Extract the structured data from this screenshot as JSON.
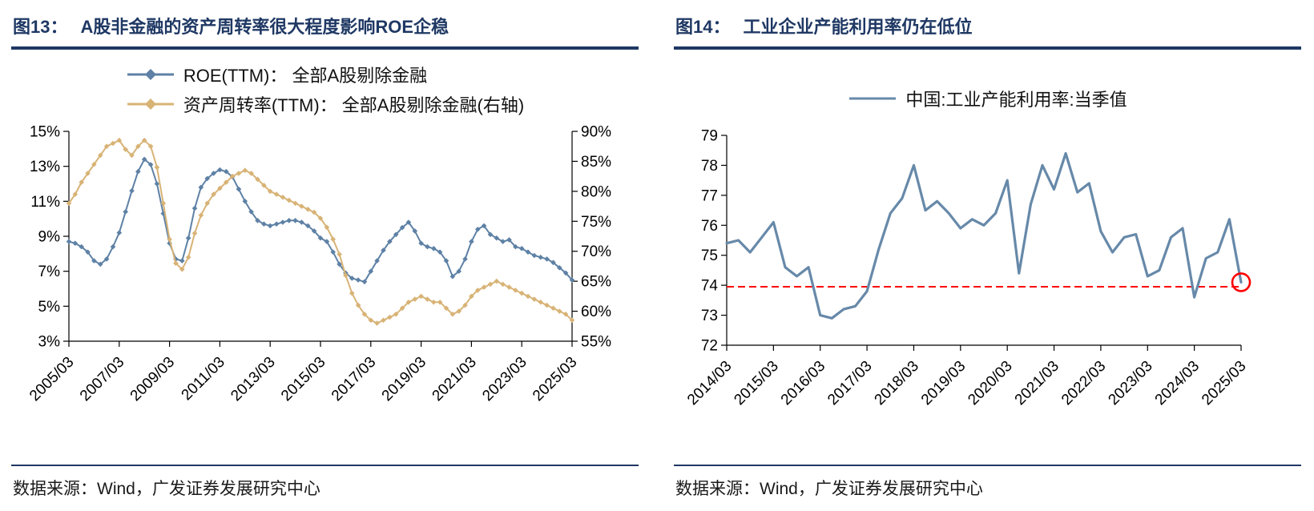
{
  "panels": [
    {
      "title_prefix": "图13：",
      "title": "A股非金融的资产周转率很大程度影响ROE企稳",
      "source": "数据来源：Wind，广发证券发展研究中心"
    },
    {
      "title_prefix": "图14：",
      "title": "工业企业产能利用率仍在低位",
      "source": "数据来源：Wind，广发证券发展研究中心"
    }
  ],
  "colors": {
    "navy_rule": "#1F3864",
    "annotation_red": "#FF0000",
    "axis_black": "#000000"
  },
  "chart_data": [
    {
      "type": "line",
      "title": "A股非金融的资产周转率很大程度影响ROE企稳",
      "x_start": "2005/03",
      "x_end": "2025/03",
      "x_freq": "quarterly",
      "x_labels": [
        "2005/03",
        "2007/03",
        "2009/03",
        "2011/03",
        "2013/03",
        "2015/03",
        "2017/03",
        "2019/03",
        "2021/03",
        "2023/03",
        "2025/03"
      ],
      "left_axis": {
        "min": 3,
        "max": 15,
        "values": [
          3,
          5,
          7,
          9,
          11,
          13,
          15
        ],
        "labels": [
          "3%",
          "5%",
          "7%",
          "9%",
          "11%",
          "13%",
          "15%"
        ]
      },
      "right_axis": {
        "min": 55,
        "max": 90,
        "values": [
          55,
          60,
          65,
          70,
          75,
          80,
          85,
          90
        ],
        "labels": [
          "55%",
          "60%",
          "65%",
          "70%",
          "75%",
          "80%",
          "85%",
          "90%"
        ]
      },
      "grid": false,
      "legend_position": "top",
      "series": [
        {
          "name": "ROE(TTM)： 全部A股剔除金融",
          "axis": "left",
          "color": "#5E81A5",
          "marker": "diamond",
          "width": 2,
          "values": [
            8.7,
            8.6,
            8.4,
            8.1,
            7.6,
            7.4,
            7.7,
            8.4,
            9.2,
            10.4,
            11.6,
            12.7,
            13.4,
            13.1,
            12.0,
            10.3,
            8.6,
            7.7,
            7.6,
            8.9,
            10.6,
            11.8,
            12.3,
            12.6,
            12.8,
            12.7,
            12.4,
            11.7,
            11.0,
            10.4,
            9.9,
            9.7,
            9.6,
            9.7,
            9.8,
            9.9,
            9.9,
            9.8,
            9.6,
            9.3,
            8.9,
            8.7,
            8.1,
            7.4,
            6.9,
            6.6,
            6.5,
            6.4,
            7.0,
            7.6,
            8.2,
            8.7,
            9.1,
            9.5,
            9.8,
            9.3,
            8.6,
            8.4,
            8.3,
            8.1,
            7.6,
            6.7,
            7.0,
            7.7,
            8.7,
            9.4,
            9.6,
            9.1,
            8.9,
            8.7,
            8.8,
            8.4,
            8.3,
            8.1,
            7.9,
            7.8,
            7.7,
            7.5,
            7.2,
            6.9,
            6.5
          ]
        },
        {
          "name": "资产周转率(TTM)： 全部A股剔除金融(右轴)",
          "axis": "right",
          "color": "#D8B376",
          "marker": "diamond",
          "width": 2,
          "values": [
            78,
            79.5,
            81.5,
            83,
            84.5,
            86,
            87.5,
            88,
            88.5,
            87,
            86,
            87.5,
            88.5,
            87.5,
            84,
            78,
            72,
            68,
            67,
            69,
            73,
            76,
            78,
            79.5,
            80.5,
            81.5,
            82.5,
            83,
            83.5,
            83,
            82,
            81,
            80,
            79.5,
            79,
            78.5,
            78,
            77.5,
            77,
            76.5,
            75.5,
            74,
            72,
            69.5,
            66,
            63,
            61,
            59.5,
            58.5,
            58,
            58.5,
            59,
            59.5,
            60.5,
            61.5,
            62,
            62.5,
            62,
            61.5,
            61.5,
            60.5,
            59.5,
            60,
            61,
            62.5,
            63.5,
            64,
            64.5,
            65,
            64.5,
            64,
            63.5,
            63,
            62.5,
            62,
            61.5,
            61,
            60.5,
            60,
            59.5,
            58.5
          ]
        }
      ]
    },
    {
      "type": "line",
      "title": "工业企业产能利用率仍在低位",
      "x_start": "2014/03",
      "x_end": "2025/03",
      "x_freq": "quarterly",
      "x_labels": [
        "2014/03",
        "2015/03",
        "2016/03",
        "2017/03",
        "2018/03",
        "2019/03",
        "2020/03",
        "2021/03",
        "2022/03",
        "2023/03",
        "2024/03",
        "2025/03"
      ],
      "left_axis": {
        "min": 72,
        "max": 79,
        "values": [
          72,
          73,
          74,
          75,
          76,
          77,
          78,
          79
        ],
        "labels": [
          "72",
          "73",
          "74",
          "75",
          "76",
          "77",
          "78",
          "79"
        ]
      },
      "grid": false,
      "legend_position": "top",
      "series": [
        {
          "name": "中国:工业产能利用率:当季值",
          "axis": "left",
          "color": "#6789A9",
          "marker": "none",
          "width": 3.2,
          "values": [
            75.4,
            75.5,
            75.1,
            75.6,
            76.1,
            74.6,
            74.3,
            74.6,
            73.0,
            72.9,
            73.2,
            73.3,
            73.8,
            75.2,
            76.4,
            76.9,
            78.0,
            76.5,
            76.8,
            76.4,
            75.9,
            76.2,
            76.0,
            76.4,
            77.5,
            74.4,
            76.7,
            78.0,
            77.2,
            78.4,
            77.1,
            77.4,
            75.8,
            75.1,
            75.6,
            75.7,
            74.3,
            74.5,
            75.6,
            75.9,
            73.6,
            74.9,
            75.1,
            76.2,
            74.1
          ]
        }
      ],
      "annotations": {
        "hline": {
          "y": 73.95,
          "color": "#FF0000",
          "style": "dashed"
        },
        "circle": {
          "x_index": 44,
          "y": 74.1,
          "color": "#FF0000"
        }
      }
    }
  ]
}
